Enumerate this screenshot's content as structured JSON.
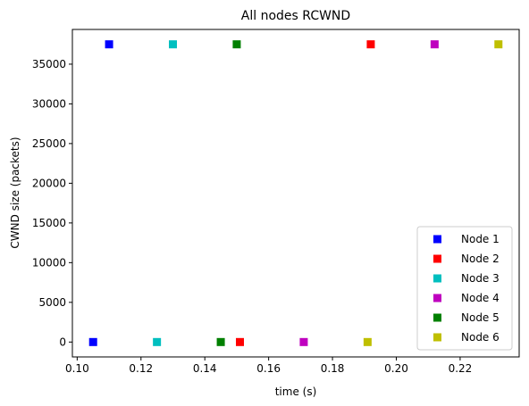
{
  "chart_data": {
    "type": "scatter",
    "title": "All nodes RCWND",
    "xlabel": "time (s)",
    "ylabel": "CWND size (packets)",
    "xlim": [
      0.0985,
      0.2385
    ],
    "ylim": [
      -1875,
      39375
    ],
    "xticks": [
      0.1,
      0.12,
      0.14,
      0.16,
      0.18,
      0.2,
      0.22
    ],
    "xtick_labels": [
      "0.10",
      "0.12",
      "0.14",
      "0.16",
      "0.18",
      "0.20",
      "0.22"
    ],
    "yticks": [
      0,
      5000,
      10000,
      15000,
      20000,
      25000,
      30000,
      35000
    ],
    "ytick_labels": [
      "0",
      "5000",
      "10000",
      "15000",
      "20000",
      "25000",
      "30000",
      "35000"
    ],
    "grid": false,
    "legend_position": "lower-right",
    "marker": "square",
    "series": [
      {
        "name": "Node 1",
        "color": "#0000ff",
        "points": [
          [
            0.105,
            0
          ],
          [
            0.11,
            37500
          ]
        ]
      },
      {
        "name": "Node 2",
        "color": "#ff0000",
        "points": [
          [
            0.151,
            0
          ],
          [
            0.192,
            37500
          ]
        ]
      },
      {
        "name": "Node 3",
        "color": "#00bfbf",
        "points": [
          [
            0.125,
            0
          ],
          [
            0.13,
            37500
          ]
        ]
      },
      {
        "name": "Node 4",
        "color": "#bf00bf",
        "points": [
          [
            0.171,
            0
          ],
          [
            0.212,
            37500
          ]
        ]
      },
      {
        "name": "Node 5",
        "color": "#008000",
        "points": [
          [
            0.145,
            0
          ],
          [
            0.15,
            37500
          ]
        ]
      },
      {
        "name": "Node 6",
        "color": "#bfbf00",
        "points": [
          [
            0.191,
            0
          ],
          [
            0.232,
            37500
          ]
        ]
      }
    ]
  }
}
